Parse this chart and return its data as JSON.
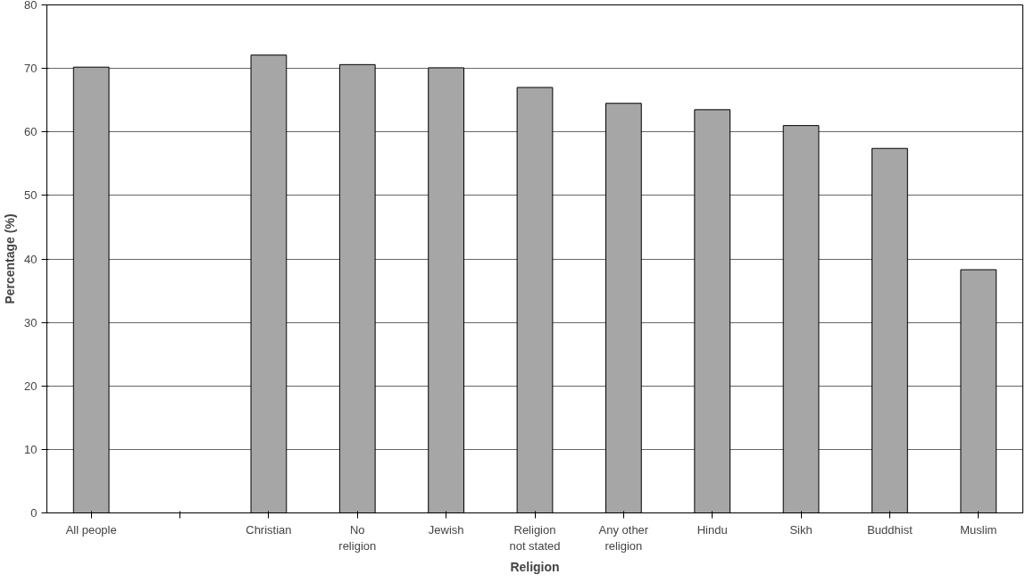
{
  "chart_data": {
    "type": "bar",
    "xlabel": "Religion",
    "ylabel": "Percentage (%)",
    "categories": [
      "All people",
      null,
      "Christian",
      "No religion",
      "Jewish",
      "Religion not stated",
      "Any other religion",
      "Hindu",
      "Sikh",
      "Buddhist",
      "Muslim"
    ],
    "values": [
      70.2,
      null,
      72.1,
      70.6,
      70.1,
      67.0,
      64.5,
      63.5,
      61.0,
      57.4,
      38.3
    ],
    "color": "#a6a6a6",
    "ylim": [
      0,
      80
    ],
    "yticks": [
      0,
      10,
      20,
      30,
      40,
      50,
      60,
      70,
      80
    ],
    "grid": "y"
  }
}
